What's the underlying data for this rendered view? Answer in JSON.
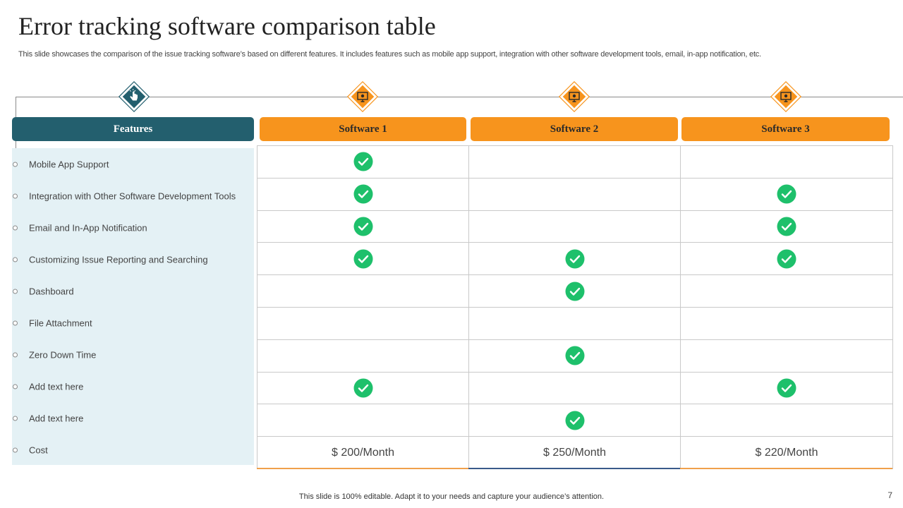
{
  "slide": {
    "title": "Error tracking software comparison table",
    "subtitle": "This slide showcases the comparison of the issue tracking software’s based on different features. It includes features such as mobile app support, integration with other software development tools, email, in-app notification, etc.",
    "footer": "This slide is 100% editable. Adapt it to your needs and capture your audience’s attention.",
    "page_number": "7"
  },
  "colors": {
    "teal": "#235f6e",
    "orange": "#f7941d",
    "check_green": "#1ec06b",
    "features_bg": "#e4f1f5"
  },
  "icons": {
    "features": "hand-pointer-icon",
    "software": "monitor-icon",
    "mark": "check-circle-icon"
  },
  "table": {
    "features_header": "Features",
    "columns": [
      "Software 1",
      "Software 2",
      "Software 3"
    ],
    "rows": [
      {
        "feature": "Mobile App Support",
        "checks": [
          true,
          false,
          false
        ]
      },
      {
        "feature": "Integration with Other Software Development Tools",
        "checks": [
          true,
          false,
          true
        ]
      },
      {
        "feature": "Email and In-App Notification",
        "checks": [
          true,
          false,
          true
        ]
      },
      {
        "feature": "Customizing Issue Reporting and Searching",
        "checks": [
          true,
          true,
          true
        ]
      },
      {
        "feature": "Dashboard",
        "checks": [
          false,
          true,
          false
        ]
      },
      {
        "feature": "File Attachment",
        "checks": [
          false,
          false,
          false
        ]
      },
      {
        "feature": "Zero Down Time",
        "checks": [
          false,
          true,
          false
        ]
      },
      {
        "feature": "Add text here",
        "checks": [
          true,
          false,
          true
        ]
      },
      {
        "feature": "Add text here",
        "checks": [
          false,
          true,
          false
        ]
      },
      {
        "feature": "Cost",
        "prices": [
          "$ 200/Month",
          "$ 250/Month",
          "$ 220/Month"
        ]
      }
    ]
  }
}
